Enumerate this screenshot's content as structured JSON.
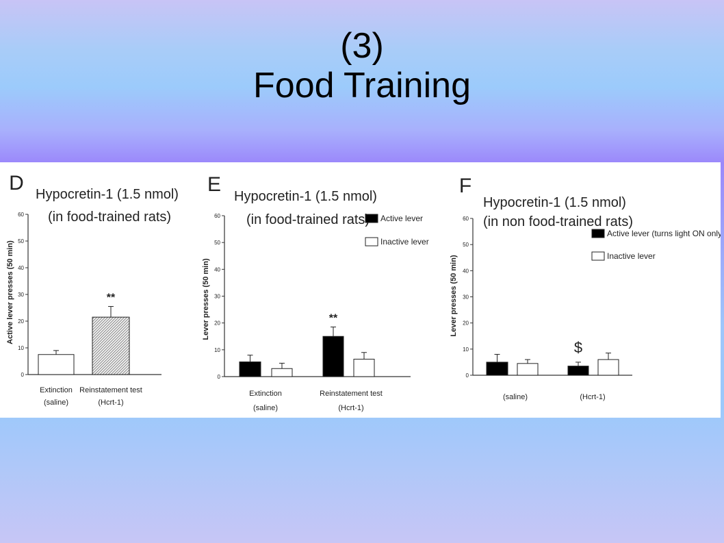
{
  "slide": {
    "title_line1": "(3)",
    "title_line2": "Food Training"
  },
  "chart_data": [
    {
      "type": "bar",
      "panel_letter": "D",
      "title": "Hypocretin-1 (1.5 nmol)",
      "subtitle": "(in food-trained rats)",
      "ylabel": "Active lever presses (50 min)",
      "ylim": [
        0,
        60
      ],
      "yticks": [
        "0",
        "10",
        "20",
        "30",
        "40",
        "50",
        "60"
      ],
      "categories": [
        {
          "line1": "Extinction",
          "line2": "(saline)"
        },
        {
          "line1": "Reinstatement test",
          "line2": "(Hcrt-1)"
        }
      ],
      "series": [
        {
          "values": [
            7.5,
            21.5
          ],
          "errors": [
            1.5,
            4
          ],
          "fills": [
            "#ffffff",
            "url(#hatch)"
          ]
        }
      ],
      "annotations": [
        {
          "category": 1,
          "text": "**"
        }
      ]
    },
    {
      "type": "bar",
      "panel_letter": "E",
      "title": "Hypocretin-1 (1.5 nmol)",
      "subtitle": "(in food-trained rats)",
      "ylabel": "Lever presses (50 min)",
      "ylim": [
        0,
        60
      ],
      "yticks": [
        "0",
        "10",
        "20",
        "30",
        "40",
        "50",
        "60"
      ],
      "categories": [
        {
          "line1": "Extinction",
          "line2": "(saline)"
        },
        {
          "line1": "Reinstatement test",
          "line2": "(Hcrt-1)"
        }
      ],
      "series": [
        {
          "name": "Active lever",
          "values": [
            5.5,
            15
          ],
          "errors": [
            2.5,
            3.5
          ],
          "fill": "#000000"
        },
        {
          "name": "Inactive lever",
          "values": [
            3,
            6.5
          ],
          "errors": [
            2,
            2.5
          ],
          "fill": "#ffffff"
        }
      ],
      "legend": "top-right",
      "annotations": [
        {
          "category": 1,
          "text": "**"
        }
      ]
    },
    {
      "type": "bar",
      "panel_letter": "F",
      "title": "Hypocretin-1 (1.5 nmol)",
      "subtitle": "(in non food-trained rats)",
      "ylabel": "Lever presses (50 min)",
      "ylim": [
        0,
        60
      ],
      "yticks": [
        "0",
        "10",
        "20",
        "30",
        "40",
        "50",
        "60"
      ],
      "categories": [
        {
          "line1": "(saline)",
          "line2": ""
        },
        {
          "line1": "(Hcrt-1)",
          "line2": ""
        }
      ],
      "series": [
        {
          "name": "Active lever (turns light ON only)",
          "values": [
            5,
            3.5
          ],
          "errors": [
            3,
            1.5
          ],
          "fill": "#000000"
        },
        {
          "name": "Inactive lever",
          "values": [
            4.5,
            6
          ],
          "errors": [
            1.5,
            2.5
          ],
          "fill": "#ffffff"
        }
      ],
      "legend": "top-right",
      "annotations": [
        {
          "category": 1,
          "text": "$"
        }
      ]
    }
  ]
}
